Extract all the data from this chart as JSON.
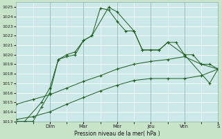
{
  "xlabel": "Pression niveau de la mer( hPa )",
  "background_color": "#c8e4c8",
  "plot_bg_color": "#cce8e8",
  "grid_color": "#ffffff",
  "line_color": "#1a5c1a",
  "ylim": [
    1013,
    1025.5
  ],
  "day_names": [
    "Dim",
    "Mar",
    "Mer",
    "Jeu",
    "Ven",
    "S"
  ],
  "day_positions": [
    2,
    4,
    6,
    8,
    10,
    12
  ],
  "series1_x": [
    0,
    0.5,
    1.0,
    1.5,
    2.0,
    2.5,
    3.0,
    3.5,
    4.0,
    4.5,
    5.0,
    5.5,
    6.0,
    6.5,
    7.0,
    7.5,
    8.0,
    8.5,
    9.0,
    9.5,
    10.0,
    10.5,
    11.0,
    11.5,
    12.0
  ],
  "series1_y": [
    1013.0,
    1013.0,
    1013.0,
    1014.5,
    1016.0,
    1019.5,
    1020.0,
    1020.3,
    1021.5,
    1022.0,
    1024.9,
    1024.7,
    1023.5,
    1022.5,
    1022.5,
    1020.5,
    1020.5,
    1020.5,
    1021.3,
    1021.3,
    1020.0,
    1020.0,
    1019.0,
    1019.0,
    1018.5
  ],
  "series2_x": [
    0,
    0.5,
    1.5,
    2.0,
    2.5,
    3.0,
    3.5,
    4.0,
    4.5,
    5.5,
    6.0,
    7.0,
    7.5,
    8.5,
    9.0,
    10.0,
    11.5,
    12.0
  ],
  "series2_y": [
    1013.0,
    1013.0,
    1015.0,
    1016.5,
    1019.5,
    1019.8,
    1020.0,
    1021.5,
    1022.0,
    1025.0,
    1024.5,
    1022.5,
    1020.5,
    1020.5,
    1021.3,
    1020.0,
    1017.0,
    1018.5
  ],
  "series3_x": [
    0,
    1,
    2,
    3,
    4,
    5,
    6,
    7,
    8,
    9,
    10,
    11,
    12
  ],
  "series3_y": [
    1014.8,
    1015.3,
    1015.8,
    1016.5,
    1017.2,
    1017.8,
    1018.5,
    1019.0,
    1019.3,
    1019.5,
    1019.8,
    1019.0,
    1018.5
  ],
  "series4_x": [
    0,
    1,
    2,
    3,
    4,
    5,
    6,
    7,
    8,
    9,
    10,
    11,
    12
  ],
  "series4_y": [
    1013.2,
    1013.5,
    1014.0,
    1014.8,
    1015.5,
    1016.2,
    1016.8,
    1017.3,
    1017.5,
    1017.5,
    1017.5,
    1017.8,
    1018.5
  ]
}
